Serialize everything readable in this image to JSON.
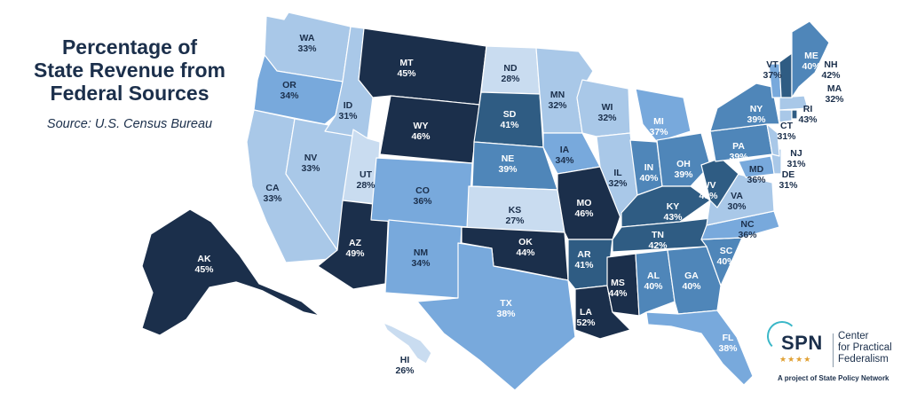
{
  "title": {
    "line1": "Percentage of",
    "line2": "State Revenue from",
    "line3": "Federal Sources"
  },
  "source": "Source: U.S. Census Bureau",
  "legend_logo": {
    "acronym": "SPN",
    "line1": "Center",
    "line2": "for Practical",
    "line3": "Federalism",
    "footer": "A project of State Policy Network"
  },
  "colors": {
    "tier1": "#c9dcf0",
    "tier2": "#a9c8e8",
    "tier3": "#78a9dc",
    "tier4": "#4f86b9",
    "tier5": "#2f5c83",
    "tier6": "#1b2f4b",
    "label_dark": "#1b2f4b",
    "label_light": "#ffffff"
  },
  "chart_data": {
    "type": "choropleth",
    "unit": "%",
    "states": [
      {
        "abbr": "WA",
        "value": 33
      },
      {
        "abbr": "OR",
        "value": 34
      },
      {
        "abbr": "CA",
        "value": 33
      },
      {
        "abbr": "NV",
        "value": 33
      },
      {
        "abbr": "ID",
        "value": 31
      },
      {
        "abbr": "MT",
        "value": 45
      },
      {
        "abbr": "WY",
        "value": 46
      },
      {
        "abbr": "UT",
        "value": 28
      },
      {
        "abbr": "AZ",
        "value": 49
      },
      {
        "abbr": "CO",
        "value": 36
      },
      {
        "abbr": "NM",
        "value": 34
      },
      {
        "abbr": "ND",
        "value": 28
      },
      {
        "abbr": "SD",
        "value": 41
      },
      {
        "abbr": "NE",
        "value": 39
      },
      {
        "abbr": "KS",
        "value": 27
      },
      {
        "abbr": "OK",
        "value": 44
      },
      {
        "abbr": "TX",
        "value": 38
      },
      {
        "abbr": "MN",
        "value": 32
      },
      {
        "abbr": "IA",
        "value": 34
      },
      {
        "abbr": "MO",
        "value": 46
      },
      {
        "abbr": "AR",
        "value": 41
      },
      {
        "abbr": "LA",
        "value": 52
      },
      {
        "abbr": "WI",
        "value": 32
      },
      {
        "abbr": "IL",
        "value": 32
      },
      {
        "abbr": "MI",
        "value": 37
      },
      {
        "abbr": "IN",
        "value": 40
      },
      {
        "abbr": "OH",
        "value": 39
      },
      {
        "abbr": "KY",
        "value": 43
      },
      {
        "abbr": "TN",
        "value": 42
      },
      {
        "abbr": "MS",
        "value": 44
      },
      {
        "abbr": "AL",
        "value": 40
      },
      {
        "abbr": "GA",
        "value": 40
      },
      {
        "abbr": "FL",
        "value": 38
      },
      {
        "abbr": "SC",
        "value": 40
      },
      {
        "abbr": "NC",
        "value": 36
      },
      {
        "abbr": "VA",
        "value": 30
      },
      {
        "abbr": "WV",
        "value": 43
      },
      {
        "abbr": "MD",
        "value": 36
      },
      {
        "abbr": "DE",
        "value": 31
      },
      {
        "abbr": "PA",
        "value": 39
      },
      {
        "abbr": "NJ",
        "value": 31
      },
      {
        "abbr": "NY",
        "value": 39
      },
      {
        "abbr": "CT",
        "value": 31
      },
      {
        "abbr": "RI",
        "value": 43
      },
      {
        "abbr": "MA",
        "value": 32
      },
      {
        "abbr": "VT",
        "value": 37
      },
      {
        "abbr": "NH",
        "value": 42
      },
      {
        "abbr": "ME",
        "value": 40
      },
      {
        "abbr": "AK",
        "value": 45
      },
      {
        "abbr": "HI",
        "value": 26
      }
    ]
  }
}
